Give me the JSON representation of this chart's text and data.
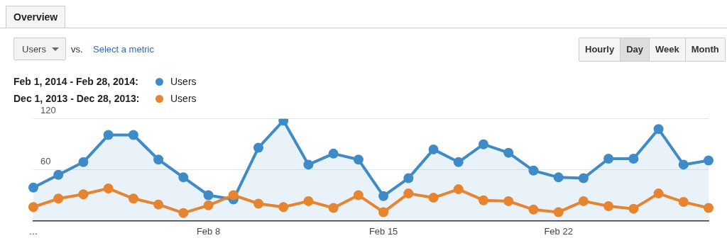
{
  "chart_data": {
    "type": "line",
    "categories": [
      "…",
      null,
      null,
      null,
      null,
      null,
      null,
      "Feb 8",
      null,
      null,
      null,
      null,
      null,
      null,
      "Feb 15",
      null,
      null,
      null,
      null,
      null,
      null,
      "Feb 22",
      null,
      null,
      null,
      null,
      null,
      null
    ],
    "series": [
      {
        "name": "Users",
        "type": "area",
        "color": "#3e8bc8",
        "values": [
          39,
          54,
          69,
          101,
          101,
          72,
          51,
          30,
          25,
          86,
          118,
          66,
          79,
          72,
          29,
          50,
          84,
          69,
          90,
          80,
          59,
          51,
          50,
          73,
          73,
          108,
          66,
          71
        ]
      },
      {
        "name": "Users",
        "type": "line",
        "color": "#e6842f",
        "values": [
          16,
          26,
          31,
          38,
          26,
          19,
          9,
          18,
          30,
          20,
          16,
          23,
          15,
          30,
          10,
          32,
          27,
          37,
          24,
          23,
          13,
          10,
          23,
          17,
          14,
          32,
          22,
          15
        ]
      }
    ],
    "ylim": [
      0,
      120
    ],
    "yticks": [
      {
        "value": 0,
        "label": null
      },
      60,
      120
    ],
    "grid": "y",
    "marker": "circle",
    "legend": "top left",
    "annotations": [
      "Overview",
      "Users",
      "vs.",
      "Select a metric",
      "Hourly",
      "Day",
      "Week",
      "Month",
      "Feb 1, 2014 - Feb 28, 2014:",
      "Dec 1, 2013 - Dec 28, 2013:"
    ]
  }
}
